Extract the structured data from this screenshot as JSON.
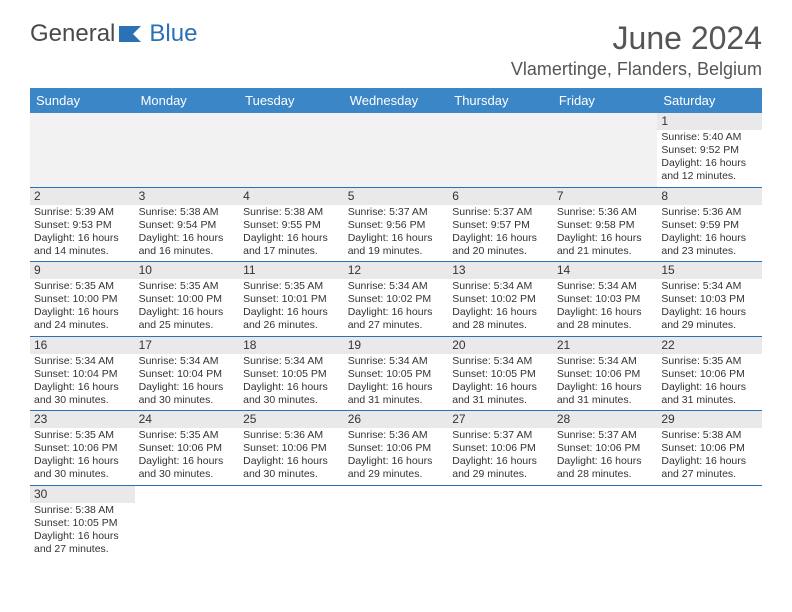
{
  "logo": {
    "text1": "General",
    "text2": "Blue"
  },
  "title": "June 2024",
  "location": "Vlamertinge, Flanders, Belgium",
  "colors": {
    "header_bg": "#3b86c6",
    "header_text": "#ffffff",
    "border": "#2a72b5",
    "daynum_bg": "#e9e9e9",
    "blank_bg": "#f2f2f2",
    "text": "#333333",
    "title_color": "#555555"
  },
  "day_headers": [
    "Sunday",
    "Monday",
    "Tuesday",
    "Wednesday",
    "Thursday",
    "Friday",
    "Saturday"
  ],
  "weeks": [
    [
      null,
      null,
      null,
      null,
      null,
      null,
      {
        "n": "1",
        "sr": "Sunrise: 5:40 AM",
        "ss": "Sunset: 9:52 PM",
        "d1": "Daylight: 16 hours",
        "d2": "and 12 minutes."
      }
    ],
    [
      {
        "n": "2",
        "sr": "Sunrise: 5:39 AM",
        "ss": "Sunset: 9:53 PM",
        "d1": "Daylight: 16 hours",
        "d2": "and 14 minutes."
      },
      {
        "n": "3",
        "sr": "Sunrise: 5:38 AM",
        "ss": "Sunset: 9:54 PM",
        "d1": "Daylight: 16 hours",
        "d2": "and 16 minutes."
      },
      {
        "n": "4",
        "sr": "Sunrise: 5:38 AM",
        "ss": "Sunset: 9:55 PM",
        "d1": "Daylight: 16 hours",
        "d2": "and 17 minutes."
      },
      {
        "n": "5",
        "sr": "Sunrise: 5:37 AM",
        "ss": "Sunset: 9:56 PM",
        "d1": "Daylight: 16 hours",
        "d2": "and 19 minutes."
      },
      {
        "n": "6",
        "sr": "Sunrise: 5:37 AM",
        "ss": "Sunset: 9:57 PM",
        "d1": "Daylight: 16 hours",
        "d2": "and 20 minutes."
      },
      {
        "n": "7",
        "sr": "Sunrise: 5:36 AM",
        "ss": "Sunset: 9:58 PM",
        "d1": "Daylight: 16 hours",
        "d2": "and 21 minutes."
      },
      {
        "n": "8",
        "sr": "Sunrise: 5:36 AM",
        "ss": "Sunset: 9:59 PM",
        "d1": "Daylight: 16 hours",
        "d2": "and 23 minutes."
      }
    ],
    [
      {
        "n": "9",
        "sr": "Sunrise: 5:35 AM",
        "ss": "Sunset: 10:00 PM",
        "d1": "Daylight: 16 hours",
        "d2": "and 24 minutes."
      },
      {
        "n": "10",
        "sr": "Sunrise: 5:35 AM",
        "ss": "Sunset: 10:00 PM",
        "d1": "Daylight: 16 hours",
        "d2": "and 25 minutes."
      },
      {
        "n": "11",
        "sr": "Sunrise: 5:35 AM",
        "ss": "Sunset: 10:01 PM",
        "d1": "Daylight: 16 hours",
        "d2": "and 26 minutes."
      },
      {
        "n": "12",
        "sr": "Sunrise: 5:34 AM",
        "ss": "Sunset: 10:02 PM",
        "d1": "Daylight: 16 hours",
        "d2": "and 27 minutes."
      },
      {
        "n": "13",
        "sr": "Sunrise: 5:34 AM",
        "ss": "Sunset: 10:02 PM",
        "d1": "Daylight: 16 hours",
        "d2": "and 28 minutes."
      },
      {
        "n": "14",
        "sr": "Sunrise: 5:34 AM",
        "ss": "Sunset: 10:03 PM",
        "d1": "Daylight: 16 hours",
        "d2": "and 28 minutes."
      },
      {
        "n": "15",
        "sr": "Sunrise: 5:34 AM",
        "ss": "Sunset: 10:03 PM",
        "d1": "Daylight: 16 hours",
        "d2": "and 29 minutes."
      }
    ],
    [
      {
        "n": "16",
        "sr": "Sunrise: 5:34 AM",
        "ss": "Sunset: 10:04 PM",
        "d1": "Daylight: 16 hours",
        "d2": "and 30 minutes."
      },
      {
        "n": "17",
        "sr": "Sunrise: 5:34 AM",
        "ss": "Sunset: 10:04 PM",
        "d1": "Daylight: 16 hours",
        "d2": "and 30 minutes."
      },
      {
        "n": "18",
        "sr": "Sunrise: 5:34 AM",
        "ss": "Sunset: 10:05 PM",
        "d1": "Daylight: 16 hours",
        "d2": "and 30 minutes."
      },
      {
        "n": "19",
        "sr": "Sunrise: 5:34 AM",
        "ss": "Sunset: 10:05 PM",
        "d1": "Daylight: 16 hours",
        "d2": "and 31 minutes."
      },
      {
        "n": "20",
        "sr": "Sunrise: 5:34 AM",
        "ss": "Sunset: 10:05 PM",
        "d1": "Daylight: 16 hours",
        "d2": "and 31 minutes."
      },
      {
        "n": "21",
        "sr": "Sunrise: 5:34 AM",
        "ss": "Sunset: 10:06 PM",
        "d1": "Daylight: 16 hours",
        "d2": "and 31 minutes."
      },
      {
        "n": "22",
        "sr": "Sunrise: 5:35 AM",
        "ss": "Sunset: 10:06 PM",
        "d1": "Daylight: 16 hours",
        "d2": "and 31 minutes."
      }
    ],
    [
      {
        "n": "23",
        "sr": "Sunrise: 5:35 AM",
        "ss": "Sunset: 10:06 PM",
        "d1": "Daylight: 16 hours",
        "d2": "and 30 minutes."
      },
      {
        "n": "24",
        "sr": "Sunrise: 5:35 AM",
        "ss": "Sunset: 10:06 PM",
        "d1": "Daylight: 16 hours",
        "d2": "and 30 minutes."
      },
      {
        "n": "25",
        "sr": "Sunrise: 5:36 AM",
        "ss": "Sunset: 10:06 PM",
        "d1": "Daylight: 16 hours",
        "d2": "and 30 minutes."
      },
      {
        "n": "26",
        "sr": "Sunrise: 5:36 AM",
        "ss": "Sunset: 10:06 PM",
        "d1": "Daylight: 16 hours",
        "d2": "and 29 minutes."
      },
      {
        "n": "27",
        "sr": "Sunrise: 5:37 AM",
        "ss": "Sunset: 10:06 PM",
        "d1": "Daylight: 16 hours",
        "d2": "and 29 minutes."
      },
      {
        "n": "28",
        "sr": "Sunrise: 5:37 AM",
        "ss": "Sunset: 10:06 PM",
        "d1": "Daylight: 16 hours",
        "d2": "and 28 minutes."
      },
      {
        "n": "29",
        "sr": "Sunrise: 5:38 AM",
        "ss": "Sunset: 10:06 PM",
        "d1": "Daylight: 16 hours",
        "d2": "and 27 minutes."
      }
    ],
    [
      {
        "n": "30",
        "sr": "Sunrise: 5:38 AM",
        "ss": "Sunset: 10:05 PM",
        "d1": "Daylight: 16 hours",
        "d2": "and 27 minutes."
      },
      null,
      null,
      null,
      null,
      null,
      null
    ]
  ]
}
